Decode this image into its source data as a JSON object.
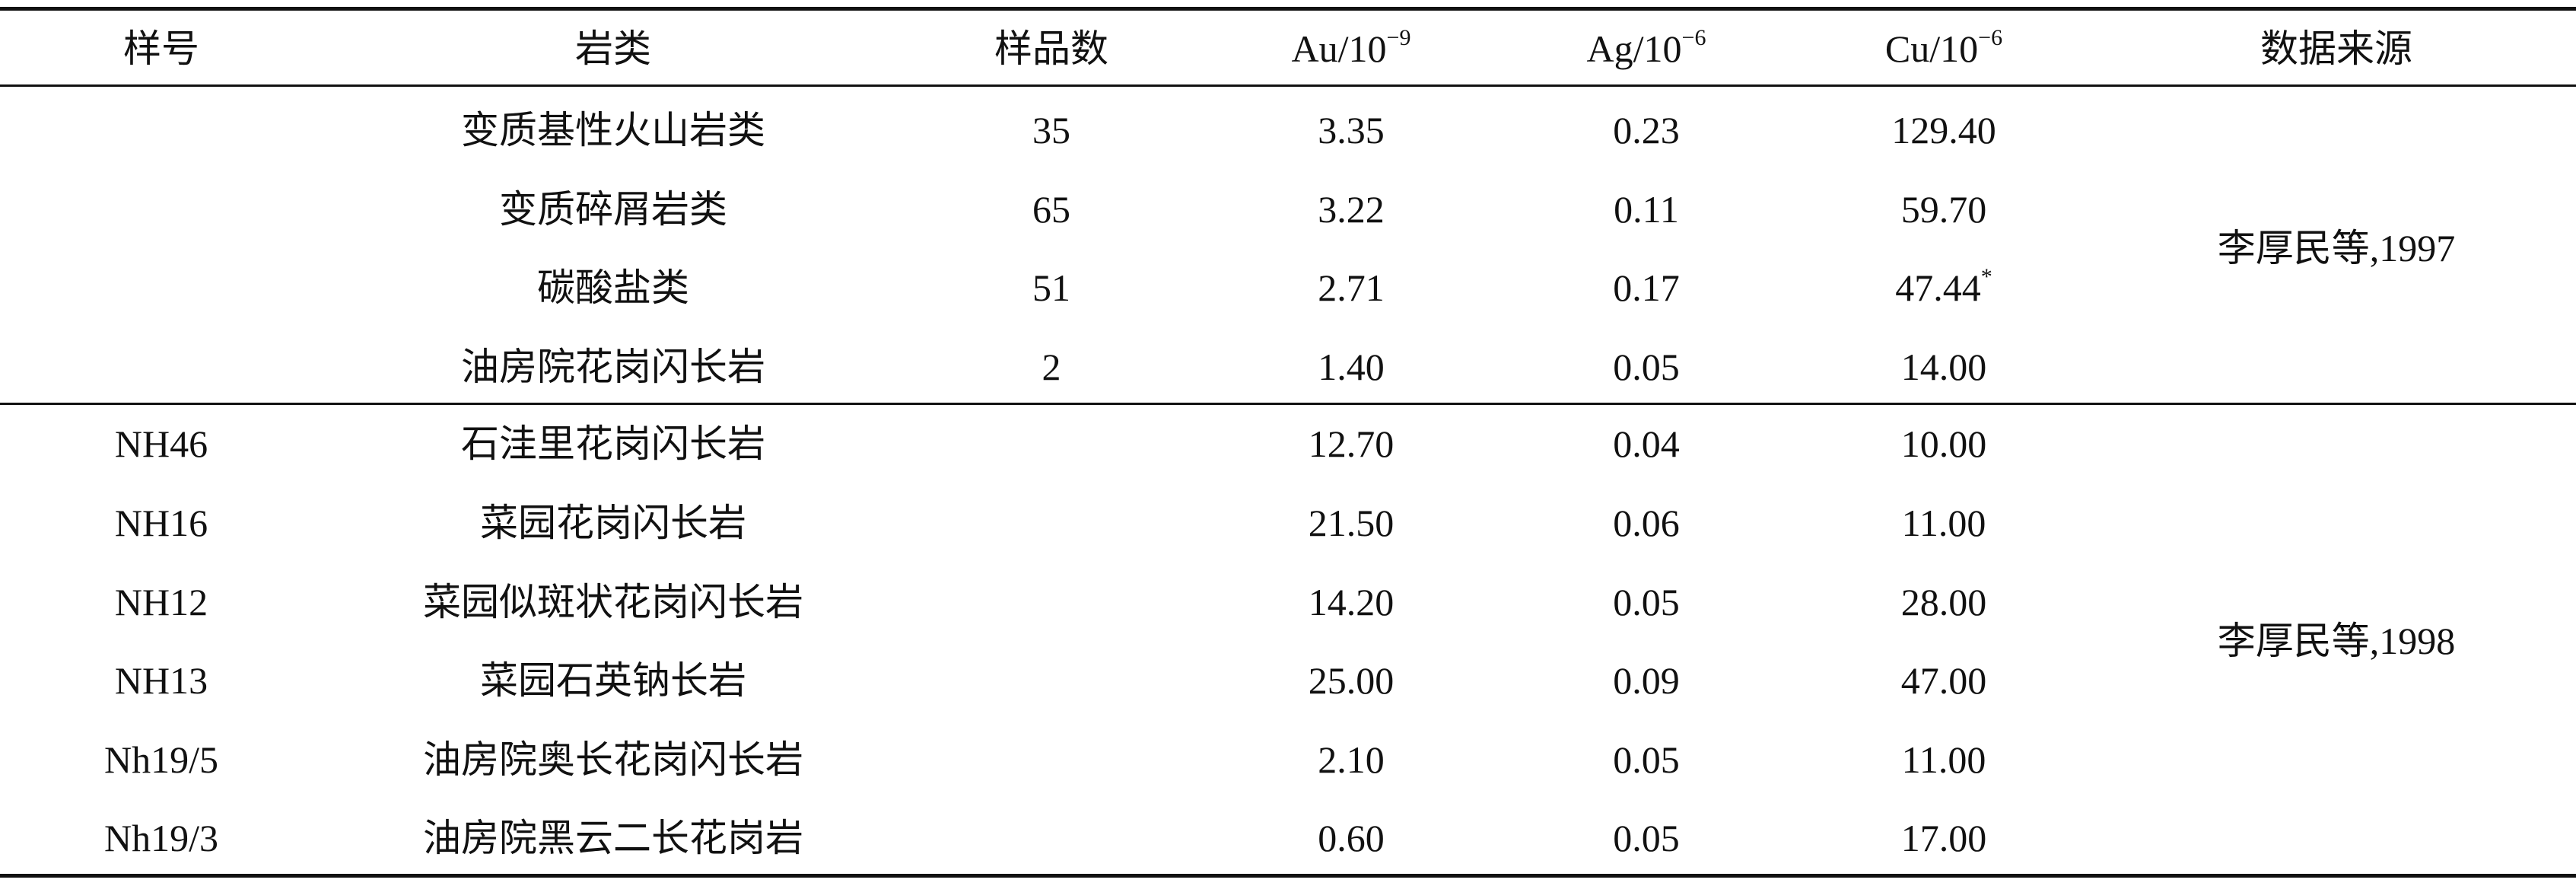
{
  "table": {
    "header": [
      {
        "text": "样号"
      },
      {
        "text": "岩类"
      },
      {
        "text": "样品数"
      },
      {
        "text": "Au/10",
        "sup": "−9"
      },
      {
        "text": "Ag/10",
        "sup": "−6"
      },
      {
        "text": "Cu/10",
        "sup": "−6"
      },
      {
        "text": "数据来源"
      }
    ],
    "groups": [
      {
        "source": "李厚民等,1997",
        "rows": [
          {
            "rock": "变质基性火山岩类",
            "count": "35",
            "au": "3.35",
            "ag": "0.23",
            "cu": {
              "text": "129.40"
            }
          },
          {
            "rock": "变质碎屑岩类",
            "count": "65",
            "au": "3.22",
            "ag": "0.11",
            "cu": {
              "text": "59.70"
            }
          },
          {
            "rock": "碳酸盐类",
            "count": "51",
            "au": "2.71",
            "ag": "0.17",
            "cu": {
              "text": "47.44",
              "sup": "*"
            }
          },
          {
            "rock": "油房院花岗闪长岩",
            "count": "2",
            "au": "1.40",
            "ag": "0.05",
            "cu": {
              "text": "14.00"
            }
          }
        ]
      },
      {
        "source": "李厚民等,1998",
        "rows": [
          {
            "id": "NH46",
            "rock": "石洼里花岗闪长岩",
            "au": "12.70",
            "ag": "0.04",
            "cu": {
              "text": "10.00"
            }
          },
          {
            "id": "NH16",
            "rock": "菜园花岗闪长岩",
            "au": "21.50",
            "ag": "0.06",
            "cu": {
              "text": "11.00"
            }
          },
          {
            "id": "NH12",
            "rock": "菜园似斑状花岗闪长岩",
            "au": "14.20",
            "ag": "0.05",
            "cu": {
              "text": "28.00"
            }
          },
          {
            "id": "NH13",
            "rock": "菜园石英钠长岩",
            "au": "25.00",
            "ag": "0.09",
            "cu": {
              "text": "47.00"
            }
          },
          {
            "id": "Nh19/5",
            "rock": "油房院奥长花岗闪长岩",
            "au": "2.10",
            "ag": "0.05",
            "cu": {
              "text": "11.00"
            }
          },
          {
            "id": "Nh19/3",
            "rock": "油房院黑云二长花岗岩",
            "au": "0.60",
            "ag": "0.05",
            "cu": {
              "text": "17.00"
            }
          }
        ]
      }
    ]
  }
}
